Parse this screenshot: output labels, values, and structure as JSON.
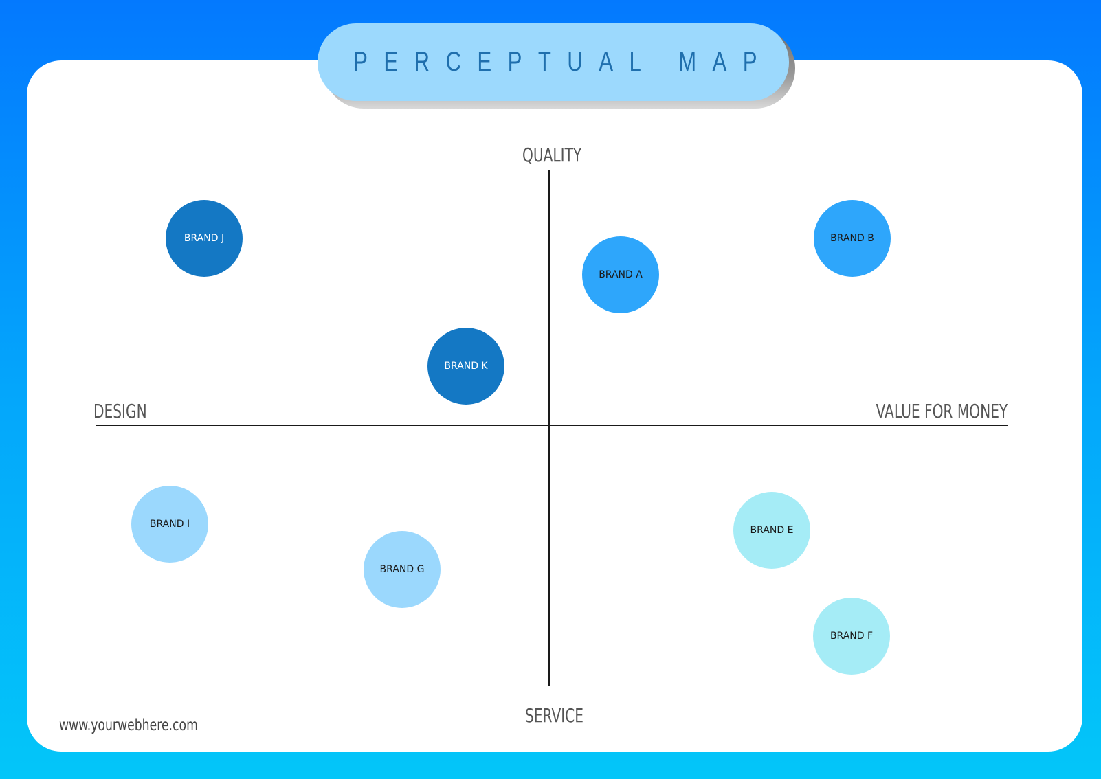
{
  "title": "PERCEPTUAL MAP",
  "axes": {
    "top": "QUALITY",
    "bottom": "SERVICE",
    "left": "DESIGN",
    "right": "VALUE FOR MONEY"
  },
  "footer": "www.yourwebhere.com",
  "colors": {
    "background_top": "#0479fe",
    "background_bottom": "#03c6f9",
    "card": "#ffffff",
    "title_pill": "#9cd9fd",
    "title_text": "#1f6fad",
    "dark_blue": "#1478c4",
    "mid_blue": "#2ea6fb",
    "light_blue": "#9bd8fd",
    "cyan": "#a5ecf6"
  },
  "brands": [
    {
      "label": "BRAND J",
      "color": "#1478c4",
      "text_color": "#ffffff",
      "quadrant": "quality-design"
    },
    {
      "label": "BRAND K",
      "color": "#1478c4",
      "text_color": "#ffffff",
      "quadrant": "quality-design"
    },
    {
      "label": "BRAND A",
      "color": "#2ea6fb",
      "text_color": "#1a1a1a",
      "quadrant": "quality-value"
    },
    {
      "label": "BRAND B",
      "color": "#2ea6fb",
      "text_color": "#1a1a1a",
      "quadrant": "quality-value"
    },
    {
      "label": "BRAND I",
      "color": "#9bd8fd",
      "text_color": "#1a1a1a",
      "quadrant": "service-design"
    },
    {
      "label": "BRAND G",
      "color": "#9bd8fd",
      "text_color": "#1a1a1a",
      "quadrant": "service-design"
    },
    {
      "label": "BRAND E",
      "color": "#a5ecf6",
      "text_color": "#1a1a1a",
      "quadrant": "service-value"
    },
    {
      "label": "BRAND F",
      "color": "#a5ecf6",
      "text_color": "#1a1a1a",
      "quadrant": "service-value"
    }
  ]
}
